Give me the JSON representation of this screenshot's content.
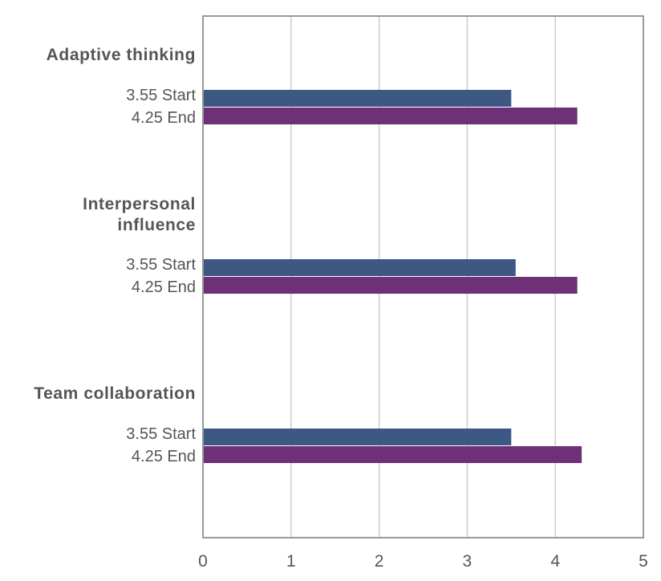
{
  "chart_data": {
    "type": "bar",
    "orientation": "horizontal",
    "xlim": [
      0,
      5
    ],
    "x_ticks": [
      "0",
      "1",
      "2",
      "3",
      "4",
      "5"
    ],
    "grid": "vertical",
    "groups": [
      {
        "category": [
          "Adaptive thinking"
        ],
        "bars": [
          {
            "label": "3.55 Start",
            "value": 3.5,
            "series": "start"
          },
          {
            "label": "4.25 End",
            "value": 4.25,
            "series": "end"
          }
        ]
      },
      {
        "category": [
          "Interpersonal",
          "influence"
        ],
        "bars": [
          {
            "label": "3.55 Start",
            "value": 3.55,
            "series": "start"
          },
          {
            "label": "4.25 End",
            "value": 4.25,
            "series": "end"
          }
        ]
      },
      {
        "category": [
          "Team collaboration"
        ],
        "bars": [
          {
            "label": "3.55 Start",
            "value": 3.5,
            "series": "start"
          },
          {
            "label": "4.25 End",
            "value": 4.3,
            "series": "end"
          }
        ]
      }
    ],
    "colors": {
      "start": "#3d5883",
      "end": "#6e3076",
      "grid": "#cccccc",
      "axis": "#999999",
      "text": "#555555"
    }
  }
}
